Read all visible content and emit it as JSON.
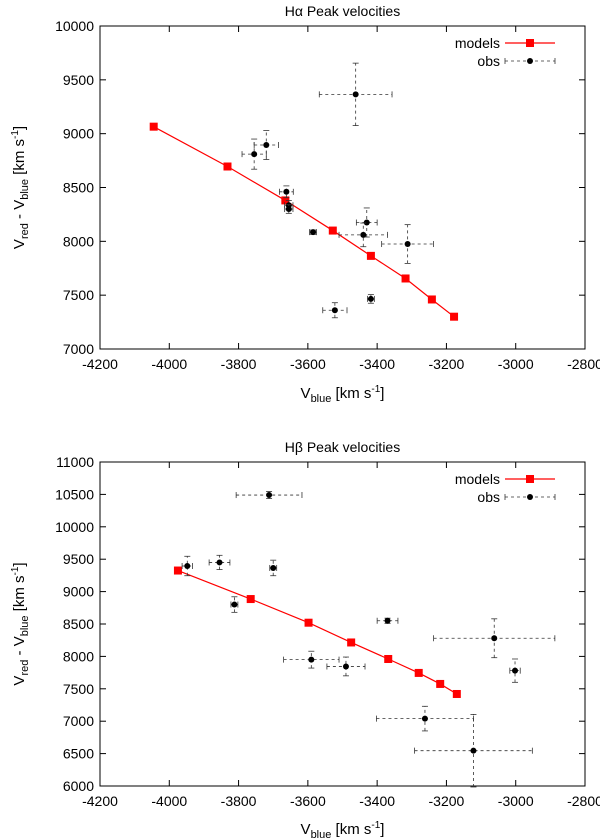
{
  "chart_data": [
    {
      "type": "scatter",
      "title": "Hα Peak velocities",
      "xlabel": "V",
      "xlabel_sub": "blue",
      "xlabel_unit": "[km s",
      "xlabel_unit_sup": "-1",
      "xlabel_unit_end": "]",
      "ylabel": "V",
      "ylabel_sub1": "red",
      "ylabel_mid": " - V",
      "ylabel_sub2": "blue",
      "ylabel_unit": " [km s",
      "ylabel_unit_sup": "-1",
      "ylabel_unit_end": "]",
      "xlim": [
        -4200,
        -2800
      ],
      "ylim": [
        7000,
        10000
      ],
      "xticks": [
        -4200,
        -4000,
        -3800,
        -3600,
        -3400,
        -3200,
        -3000,
        -2800
      ],
      "yticks": [
        7000,
        7500,
        8000,
        8500,
        9000,
        9500,
        10000
      ],
      "xtick_labels": [
        "-4200",
        "-4000",
        "-3800",
        "-3600",
        "-3400",
        "-3200",
        "-3000",
        "-2800"
      ],
      "ytick_labels": [
        "7000",
        "7500",
        "8000",
        "8500",
        "9000",
        "9500",
        "10000"
      ],
      "legend_position": "top-right",
      "legend": [
        "models",
        "obs"
      ],
      "series": [
        {
          "name": "models",
          "color": "#ff0000",
          "style": "line-squares",
          "points": [
            [
              -4045,
              9065
            ],
            [
              -3832,
              8695
            ],
            [
              -3665,
              8380
            ],
            [
              -3528,
              8100
            ],
            [
              -3418,
              7865
            ],
            [
              -3318,
              7655
            ],
            [
              -3242,
              7460
            ],
            [
              -3178,
              7300
            ]
          ]
        },
        {
          "name": "obs",
          "color": "#000000",
          "style": "points-errorbars",
          "points": [
            {
              "x": -3462,
              "y": 9365,
              "xerr": 105,
              "yerr": 290
            },
            {
              "x": -3720,
              "y": 8895,
              "xerr": 35,
              "yerr": 135
            },
            {
              "x": -3755,
              "y": 8810,
              "xerr": 35,
              "yerr": 140
            },
            {
              "x": -3662,
              "y": 8460,
              "xerr": 20,
              "yerr": 55
            },
            {
              "x": -3655,
              "y": 8335,
              "xerr": 12,
              "yerr": 45
            },
            {
              "x": -3655,
              "y": 8300,
              "xerr": 12,
              "yerr": 40
            },
            {
              "x": -3585,
              "y": 8085,
              "xerr": 10,
              "yerr": 20
            },
            {
              "x": -3430,
              "y": 8175,
              "xerr": 30,
              "yerr": 135
            },
            {
              "x": -3440,
              "y": 8060,
              "xerr": 70,
              "yerr": 110
            },
            {
              "x": -3312,
              "y": 7975,
              "xerr": 75,
              "yerr": 180
            },
            {
              "x": -3418,
              "y": 7465,
              "xerr": 10,
              "yerr": 40
            },
            {
              "x": -3522,
              "y": 7360,
              "xerr": 35,
              "yerr": 70
            }
          ]
        }
      ]
    },
    {
      "type": "scatter",
      "title": "Hβ Peak velocities",
      "xlabel": "V",
      "xlabel_sub": "blue",
      "xlabel_unit": "[km s",
      "xlabel_unit_sup": "-1",
      "xlabel_unit_end": "]",
      "ylabel": "V",
      "ylabel_sub1": "red",
      "ylabel_mid": " - V",
      "ylabel_sub2": "blue",
      "ylabel_unit": " [km s",
      "ylabel_unit_sup": "-1",
      "ylabel_unit_end": "]",
      "xlim": [
        -4200,
        -2800
      ],
      "ylim": [
        6000,
        11000
      ],
      "xticks": [
        -4200,
        -4000,
        -3800,
        -3600,
        -3400,
        -3200,
        -3000,
        -2800
      ],
      "yticks": [
        6000,
        6500,
        7000,
        7500,
        8000,
        8500,
        9000,
        9500,
        10000,
        10500,
        11000
      ],
      "xtick_labels": [
        "-4200",
        "-4000",
        "-3800",
        "-3600",
        "-3400",
        "-3200",
        "-3000",
        "-2800"
      ],
      "ytick_labels": [
        "6000",
        "6500",
        "7000",
        "7500",
        "8000",
        "8500",
        "9000",
        "9500",
        "10000",
        "10500",
        "11000"
      ],
      "legend_position": "top-right",
      "legend": [
        "models",
        "obs"
      ],
      "series": [
        {
          "name": "models",
          "color": "#ff0000",
          "style": "line-squares",
          "points": [
            [
              -3975,
              9325
            ],
            [
              -3765,
              8885
            ],
            [
              -3598,
              8520
            ],
            [
              -3475,
              8215
            ],
            [
              -3368,
              7960
            ],
            [
              -3280,
              7745
            ],
            [
              -3218,
              7575
            ],
            [
              -3170,
              7420
            ]
          ]
        },
        {
          "name": "obs",
          "color": "#000000",
          "style": "points-errorbars",
          "points": [
            {
              "x": -3712,
              "y": 10490,
              "xerr": 95,
              "yerr": 55
            },
            {
              "x": -3948,
              "y": 9395,
              "xerr": 15,
              "yerr": 150
            },
            {
              "x": -3855,
              "y": 9450,
              "xerr": 30,
              "yerr": 110
            },
            {
              "x": -3700,
              "y": 9365,
              "xerr": 10,
              "yerr": 120
            },
            {
              "x": -3812,
              "y": 8800,
              "xerr": 10,
              "yerr": 120
            },
            {
              "x": -3370,
              "y": 8550,
              "xerr": 30,
              "yerr": 40
            },
            {
              "x": -3590,
              "y": 7950,
              "xerr": 80,
              "yerr": 130
            },
            {
              "x": -3490,
              "y": 7845,
              "xerr": 55,
              "yerr": 145
            },
            {
              "x": -3062,
              "y": 8280,
              "xerr": 175,
              "yerr": 300
            },
            {
              "x": -3002,
              "y": 7780,
              "xerr": 15,
              "yerr": 180
            },
            {
              "x": -3262,
              "y": 7040,
              "xerr": 140,
              "yerr": 190
            },
            {
              "x": -3122,
              "y": 6545,
              "xerr": 170,
              "yerr": 560
            }
          ]
        }
      ]
    }
  ]
}
